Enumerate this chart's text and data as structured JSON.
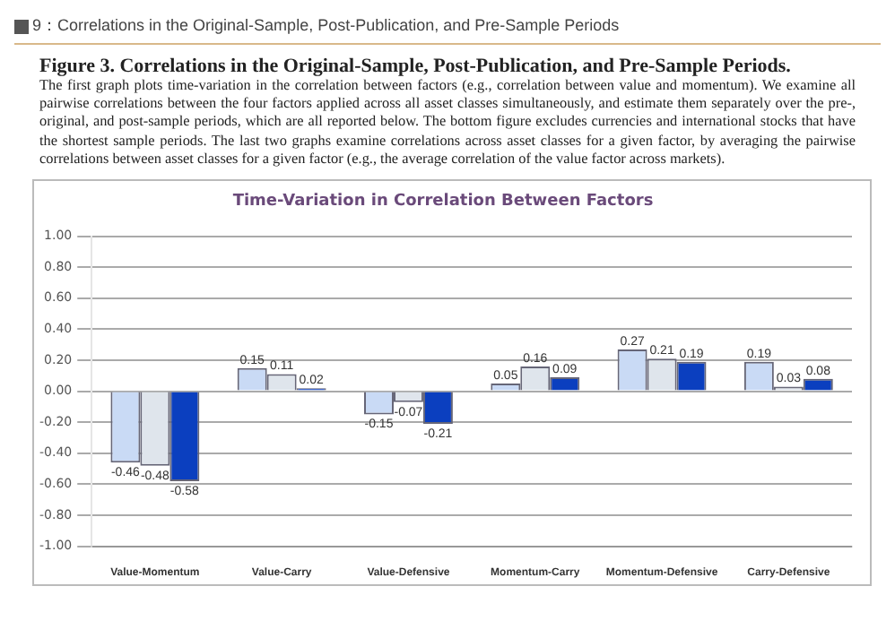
{
  "chart_data": {
    "type": "bar",
    "title": "Time-Variation in Correlation Between Factors",
    "annotations": [
      "9：Correlations in the Original-Sample, Post-Publication, and Pre-Sample Periods",
      "Figure 3. Correlations in the Original-Sample, Post-Publication, and Pre-Sample Periods.",
      "The first graph plots time-variation in the correlation between factors (e.g., correlation between value and momentum). We examine all pairwise correlations between the four factors applied across all asset classes simultaneously, and estimate them separately over the pre-, original, and post-sample periods, which are all reported below. The bottom figure excludes currencies and international stocks that have the shortest sample periods. The last two graphs examine correlations across asset classes for a given factor, by averaging the pairwise correlations between asset classes for a given factor (e.g., the average correlation of the value factor across markets)."
    ],
    "categories": [
      "Value-Momentum",
      "Value-Carry",
      "Value-Defensive",
      "Momentum-Carry",
      "Momentum-Defensive",
      "Carry-Defensive"
    ],
    "series": [
      {
        "color": "#c9daf5",
        "values": [
          -0.46,
          0.15,
          -0.15,
          0.05,
          0.27,
          0.19
        ]
      },
      {
        "color": "#dfe5ec",
        "values": [
          -0.48,
          0.11,
          -0.07,
          0.16,
          0.21,
          0.03
        ]
      },
      {
        "color": "#0b3fbf",
        "values": [
          -0.58,
          0.02,
          -0.21,
          0.09,
          0.19,
          0.08
        ]
      }
    ],
    "ylim": [
      -1,
      1
    ],
    "yticks": [
      {
        "value": -1,
        "label": "-1.00"
      },
      {
        "value": -0.8,
        "label": "-0.80"
      },
      {
        "value": -0.6,
        "label": "-0.60"
      },
      {
        "value": -0.4,
        "label": "-0.40"
      },
      {
        "value": -0.2,
        "label": "-0.20"
      },
      {
        "value": 0,
        "label": "0.00"
      },
      {
        "value": 0.2,
        "label": "0.20"
      },
      {
        "value": 0.4,
        "label": "0.40"
      },
      {
        "value": 0.6,
        "label": "0.60"
      },
      {
        "value": 0.8,
        "label": "0.80"
      },
      {
        "value": 1,
        "label": "1.00"
      }
    ],
    "grid": "y",
    "data_labels": true
  }
}
